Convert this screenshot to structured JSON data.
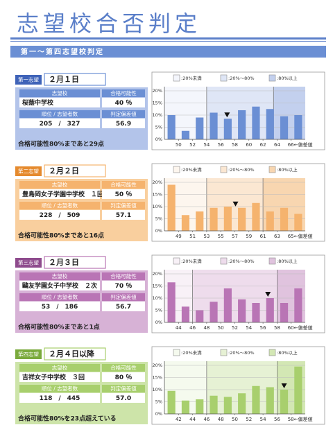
{
  "header": {
    "title": "志望校合否判定",
    "section": "第一～第四志望校判定"
  },
  "panels": [
    {
      "label": "第一志望",
      "date": "２月１日",
      "school_header": "志望校",
      "prob_header": "合格可能性",
      "school": "桜蔭中学校",
      "prob": "40 ％",
      "rank_header": "順位 / 志望者数",
      "score_header": "判定偏差値",
      "rank": "205　/　327",
      "score": "56.9",
      "note": "合格可能性80%まであと29点",
      "color": "#6b8fd4",
      "dark": "#3f63b8",
      "light": "#b3c4ea",
      "tint": [
        "#f4f6fc",
        "#dfe6f6",
        "#c3d0ee"
      ],
      "chart": {
        "legend": [
          ":20%未満",
          ":20%～80%",
          ":80%以上"
        ],
        "bins": [
          48,
          50,
          52,
          54,
          56,
          58,
          60,
          62,
          64,
          66,
          68
        ],
        "values": [
          10,
          3.5,
          9,
          11,
          8.5,
          12,
          13.5,
          12.5,
          9.5,
          10
        ],
        "marker_x": 56.9,
        "zones": [
          54,
          63.5
        ],
        "xlim": [
          48,
          68
        ],
        "xticks": [
          50,
          52,
          54,
          56,
          58,
          60,
          62,
          64,
          {
            "value": 66,
            "label": "66←偏差値"
          }
        ],
        "ylim": [
          0,
          20
        ],
        "yticks": [
          {
            "value": 0,
            "label": "0%"
          },
          {
            "value": 5,
            "label": "5%"
          },
          {
            "value": 10,
            "label": "10%"
          },
          {
            "value": 15,
            "label": "15%"
          },
          {
            "value": 20,
            "label": "20%"
          }
        ]
      }
    },
    {
      "label": "第二志望",
      "date": "２月２日",
      "school_header": "志望校",
      "prob_header": "合格可能性",
      "school": "豊島岡女子学園中学校　１回",
      "prob": "50 ％",
      "rank_header": "順位 / 志望者数",
      "score_header": "判定偏差値",
      "rank": "228　/　509",
      "score": "57.1",
      "note": "合格可能性80%まであと16点",
      "color": "#f5b36e",
      "dark": "#e58a2e",
      "light": "#f9cf9e",
      "tint": [
        "#fdf6ee",
        "#fbe7d2",
        "#f8d6b0"
      ],
      "chart": {
        "legend": [
          ":20%未満",
          ":20%～80%",
          ":80%以上"
        ],
        "bins": [
          47,
          49,
          51,
          53,
          55,
          57,
          59,
          61,
          63,
          65,
          67
        ],
        "values": [
          19,
          6.5,
          8,
          9.5,
          10,
          9.5,
          11.5,
          8,
          9.5,
          7
        ],
        "marker_x": 57.1,
        "zones": [
          53,
          61
        ],
        "xlim": [
          47,
          67
        ],
        "xticks": [
          49,
          51,
          53,
          55,
          57,
          59,
          61,
          63,
          {
            "value": 65,
            "label": "65←偏差値"
          }
        ],
        "ylim": [
          0,
          20
        ],
        "yticks": [
          {
            "value": 0,
            "label": "0%"
          },
          {
            "value": 5,
            "label": "5%"
          },
          {
            "value": 10,
            "label": "10%"
          },
          {
            "value": 15,
            "label": "15%"
          },
          {
            "value": 20,
            "label": "20%"
          }
        ]
      }
    },
    {
      "label": "第三志望",
      "date": "２月３日",
      "school_header": "志望校",
      "prob_header": "合格可能性",
      "school": "鷗友学園女子中学校　２次",
      "prob": "70 ％",
      "rank_header": "順位 / 志望者数",
      "score_header": "判定偏差値",
      "rank": "53　/　186",
      "score": "56.7",
      "note": "合格可能性80%まであと1点",
      "color": "#b975b5",
      "dark": "#8e4b8d",
      "light": "#d7b2d6",
      "tint": [
        "#f8f1f7",
        "#eedcec",
        "#e0c3de"
      ],
      "chart": {
        "legend": [
          ":20%未満",
          ":20%～80%",
          ":80%以上"
        ],
        "bins": [
          42,
          44,
          46,
          48,
          50,
          52,
          54,
          56,
          58,
          60,
          62
        ],
        "values": [
          16.5,
          6.5,
          5,
          8.5,
          14,
          9.5,
          8,
          10,
          8,
          14
        ],
        "marker_x": 56.7,
        "zones": [
          46,
          58
        ],
        "xlim": [
          42,
          62
        ],
        "xticks": [
          44,
          46,
          48,
          50,
          52,
          54,
          56,
          58,
          {
            "value": 60,
            "label": "60←偏差値"
          }
        ],
        "ylim": [
          0,
          20
        ],
        "yticks": [
          {
            "value": 0,
            "label": "0%"
          },
          {
            "value": 5,
            "label": "5%"
          },
          {
            "value": 10,
            "label": "10%"
          },
          {
            "value": 15,
            "label": "15%"
          },
          {
            "value": 20,
            "label": "20%"
          }
        ]
      }
    },
    {
      "label": "第四志望",
      "date": "２月４日以降",
      "school_header": "志望校",
      "prob_header": "合格可能性",
      "school": "吉祥女子中学校　３回",
      "prob": "80 ％",
      "rank_header": "順位 / 志望者数",
      "score_header": "判定偏差値",
      "rank": "118　/　445",
      "score": "57.0",
      "note": "合格可能性80%を23点超えている",
      "color": "#a8cf6d",
      "dark": "#7aaa3c",
      "light": "#cde4a9",
      "tint": [
        "#f5faee",
        "#e6f1d4",
        "#d3e7b4"
      ],
      "chart": {
        "legend": [
          ":20%未満",
          ":20%～80%",
          ":80%以上"
        ],
        "bins": [
          40,
          42,
          44,
          46,
          48,
          50,
          52,
          54,
          56,
          58,
          60
        ],
        "values": [
          9.5,
          5.5,
          6,
          7.5,
          7,
          8.5,
          11.5,
          11,
          10,
          19.5
        ],
        "marker_x": 57,
        "zones": [
          46,
          56
        ],
        "xlim": [
          40,
          60
        ],
        "xticks": [
          42,
          44,
          46,
          48,
          50,
          52,
          54,
          56,
          {
            "value": 58,
            "label": "58←偏差値"
          }
        ],
        "ylim": [
          0,
          20
        ],
        "yticks": [
          {
            "value": 0,
            "label": "0%"
          },
          {
            "value": 5,
            "label": "5%"
          },
          {
            "value": 10,
            "label": "10%"
          },
          {
            "value": 15,
            "label": "15%"
          },
          {
            "value": 20,
            "label": "20%"
          }
        ]
      }
    }
  ]
}
